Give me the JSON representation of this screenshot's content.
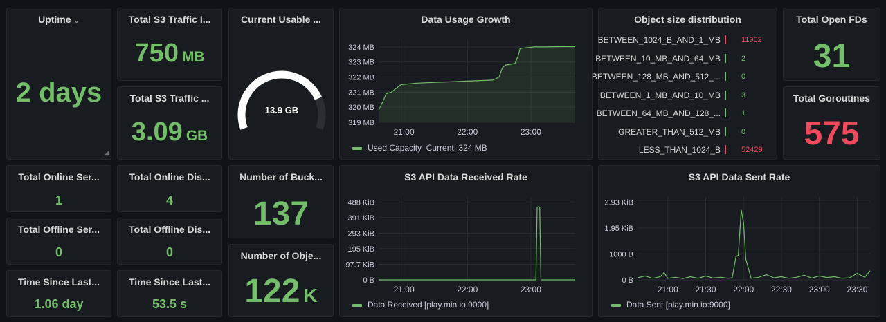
{
  "uptime": {
    "title": "Uptime",
    "value": "2 days"
  },
  "s3_traffic_1": {
    "title": "Total S3 Traffic I...",
    "value": "750",
    "unit": "MB"
  },
  "s3_traffic_2": {
    "title": "Total S3 Traffic ...",
    "value": "3.09",
    "unit": "GB"
  },
  "usable": {
    "title": "Current Usable ...",
    "value": "13.9 GB",
    "fill_fraction": 0.8
  },
  "growth": {
    "title": "Data Usage Growth",
    "legend": "Used Capacity",
    "legend_current": "Current: 324 MB"
  },
  "object_dist": {
    "title": "Object size distribution",
    "rows": [
      {
        "name": "BETWEEN_1024_B_AND_1_MB",
        "value": "11902",
        "color": "#f2495c"
      },
      {
        "name": "BETWEEN_10_MB_AND_64_MB",
        "value": "2",
        "color": "#73bf69"
      },
      {
        "name": "BETWEEN_128_MB_AND_512_...",
        "value": "0",
        "color": "#73bf69"
      },
      {
        "name": "BETWEEN_1_MB_AND_10_MB",
        "value": "3",
        "color": "#73bf69"
      },
      {
        "name": "BETWEEN_64_MB_AND_128_...",
        "value": "1",
        "color": "#73bf69"
      },
      {
        "name": "GREATER_THAN_512_MB",
        "value": "0",
        "color": "#73bf69"
      },
      {
        "name": "LESS_THAN_1024_B",
        "value": "52429",
        "color": "#f2495c"
      }
    ]
  },
  "open_fds": {
    "title": "Total Open FDs",
    "value": "31"
  },
  "goroutines": {
    "title": "Total Goroutines",
    "value": "575"
  },
  "online_servers": {
    "title": "Total Online Ser...",
    "value": "1"
  },
  "online_disks": {
    "title": "Total Online Dis...",
    "value": "4"
  },
  "offline_servers": {
    "title": "Total Offline Ser...",
    "value": "0"
  },
  "offline_disks": {
    "title": "Total Offline Dis...",
    "value": "0"
  },
  "time_since_1": {
    "title": "Time Since Last...",
    "value": "1.06 day"
  },
  "time_since_2": {
    "title": "Time Since Last...",
    "value": "53.5 s"
  },
  "buckets": {
    "title": "Number of Buck...",
    "value": "137"
  },
  "objects": {
    "title": "Number of Obje...",
    "value": "122",
    "unit": "K"
  },
  "received": {
    "title": "S3 API Data Received Rate",
    "legend": "Data Received [play.min.io:9000]"
  },
  "sent": {
    "title": "S3 API Data Sent Rate",
    "legend": "Data Sent [play.min.io:9000]"
  },
  "colors": {
    "green": "#73bf69",
    "red": "#f2495c",
    "panel_bg": "#181b1f",
    "page_bg": "#111217"
  },
  "chart_data": [
    {
      "type": "area",
      "title": "Data Usage Growth",
      "ytick_labels": [
        "324 MB",
        "323 MB",
        "322 MB",
        "321 MB",
        "320 MB",
        "319 MB"
      ],
      "xtick_labels": [
        "21:00",
        "22:00",
        "23:00"
      ],
      "ylim": [
        319,
        324.5
      ],
      "series": [
        {
          "name": "Used Capacity",
          "x_hours": [
            20.6,
            20.67,
            20.72,
            20.8,
            20.95,
            21.2,
            21.5,
            21.8,
            22.1,
            22.4,
            22.5,
            22.55,
            22.6,
            22.75,
            22.8,
            22.83,
            23.05,
            23.2,
            23.5,
            23.7
          ],
          "values": [
            319.8,
            320.4,
            320.9,
            321.0,
            321.5,
            321.6,
            321.65,
            321.7,
            321.75,
            321.8,
            322.0,
            322.6,
            322.8,
            322.9,
            323.4,
            323.9,
            324.0,
            324.0,
            324.02,
            324.02
          ]
        }
      ]
    },
    {
      "type": "line",
      "title": "S3 API Data Received Rate",
      "ytick_labels": [
        "488 KiB",
        "391 KiB",
        "293 KiB",
        "195 KiB",
        "97.7 KiB",
        "0 B"
      ],
      "yticks_kib": [
        488,
        391,
        293,
        195,
        97.7,
        0
      ],
      "xtick_labels": [
        "21:00",
        "22:00",
        "23:00"
      ],
      "ylim": [
        0,
        520
      ],
      "series": [
        {
          "name": "Data Received [play.min.io:9000]",
          "x_hours": [
            20.6,
            21.0,
            21.5,
            22.0,
            22.5,
            23.0,
            23.08,
            23.1,
            23.12,
            23.14,
            23.16,
            23.18,
            23.5,
            23.7
          ],
          "values": [
            0,
            0,
            0,
            0,
            0,
            0,
            0,
            455,
            460,
            455,
            0,
            0,
            0,
            0
          ]
        }
      ]
    },
    {
      "type": "line",
      "title": "S3 API Data Sent Rate",
      "ytick_labels": [
        "2.93 KiB",
        "1.95 KiB",
        "1000 B",
        "0 B"
      ],
      "yticks_bytes": [
        3000,
        2000,
        1000,
        0
      ],
      "xtick_labels": [
        "21:00",
        "21:30",
        "22:00",
        "22:30",
        "23:00",
        "23:30"
      ],
      "ylim": [
        0,
        3200
      ],
      "series": [
        {
          "name": "Data Sent [play.min.io:9000]",
          "x_hours": [
            20.6,
            20.7,
            20.8,
            20.9,
            20.95,
            21.0,
            21.1,
            21.2,
            21.3,
            21.4,
            21.5,
            21.6,
            21.7,
            21.8,
            21.85,
            21.9,
            21.93,
            21.97,
            22.0,
            22.03,
            22.1,
            22.2,
            22.3,
            22.4,
            22.5,
            22.6,
            22.7,
            22.8,
            22.9,
            23.0,
            23.1,
            23.2,
            23.3,
            23.4,
            23.5,
            23.6,
            23.67
          ],
          "values": [
            80,
            150,
            60,
            120,
            280,
            60,
            100,
            50,
            120,
            60,
            150,
            70,
            100,
            60,
            80,
            900,
            950,
            2700,
            2200,
            800,
            60,
            100,
            200,
            80,
            120,
            60,
            100,
            180,
            70,
            150,
            90,
            120,
            60,
            80,
            250,
            100,
            350
          ]
        }
      ]
    }
  ]
}
